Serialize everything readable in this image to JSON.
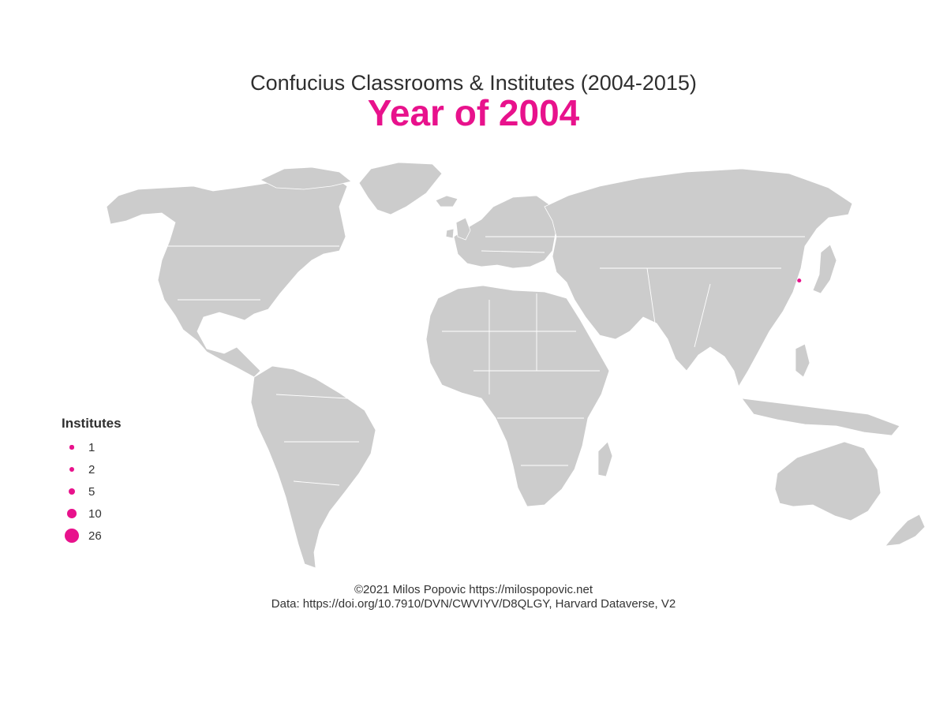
{
  "title": "Confucius Classrooms & Institutes (2004-2015)",
  "subtitle": "Year of 2004",
  "colors": {
    "accent": "#e8128c",
    "land": "#cccccc",
    "border": "#ffffff",
    "background": "#ffffff"
  },
  "legend": {
    "title": "Institutes",
    "items": [
      {
        "label": "1",
        "value": 1
      },
      {
        "label": "2",
        "value": 2
      },
      {
        "label": "5",
        "value": 5
      },
      {
        "label": "10",
        "value": 10
      },
      {
        "label": "26",
        "value": 26
      }
    ]
  },
  "markers": [
    {
      "place": "South Korea (Seoul)",
      "lon": 127.0,
      "lat": 37.5,
      "institutes": 1
    }
  ],
  "caption": {
    "line1": "©2021 Milos Popovic https://milospopovic.net",
    "line2": "Data: https://doi.org/10.7910/DVN/CWVIYV/D8QLGY, Harvard Dataverse, V2"
  }
}
